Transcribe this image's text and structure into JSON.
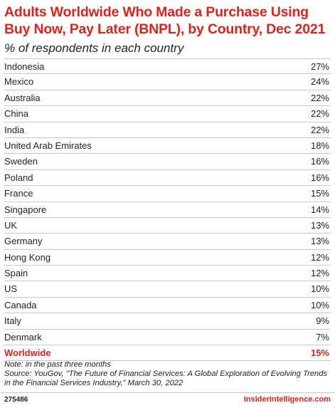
{
  "header": {
    "title": "Adults Worldwide Who Made a Purchase Using Buy Now, Pay Later (BNPL), by Country, Dec 2021",
    "subtitle": "% of respondents in each country"
  },
  "chart_data": {
    "type": "table",
    "title": "Adults Worldwide Who Made a Purchase Using Buy Now, Pay Later (BNPL), by Country, Dec 2021",
    "subtitle": "% of respondents in each country",
    "rows": [
      {
        "country": "Indonesia",
        "value": "27%"
      },
      {
        "country": "Mexico",
        "value": "24%"
      },
      {
        "country": "Australia",
        "value": "22%"
      },
      {
        "country": "China",
        "value": "22%"
      },
      {
        "country": "India",
        "value": "22%"
      },
      {
        "country": "United Arab Emirates",
        "value": "18%"
      },
      {
        "country": "Sweden",
        "value": "16%"
      },
      {
        "country": "Poland",
        "value": "16%"
      },
      {
        "country": "France",
        "value": "15%"
      },
      {
        "country": "Singapore",
        "value": "14%"
      },
      {
        "country": "UK",
        "value": "13%"
      },
      {
        "country": "Germany",
        "value": "13%"
      },
      {
        "country": "Hong Kong",
        "value": "12%"
      },
      {
        "country": "Spain",
        "value": "12%"
      },
      {
        "country": "US",
        "value": "10%"
      },
      {
        "country": "Canada",
        "value": "10%"
      },
      {
        "country": "Italy",
        "value": "9%"
      },
      {
        "country": "Denmark",
        "value": "7%"
      }
    ],
    "total": {
      "country": "Worldwide",
      "value": "15%"
    }
  },
  "notes": {
    "note": "Note: in the past three months",
    "source": "Source: YouGov, \"The Future of Financial Services: A Global Exploration of Evolving Trends in the Financial Services Industry,\" March 30, 2022"
  },
  "footer": {
    "chart_id": "275486",
    "brand": "InsiderIntelligence.com"
  },
  "colors": {
    "accent": "#e2211c",
    "text": "#222222",
    "rule": "#c8c8c8"
  }
}
